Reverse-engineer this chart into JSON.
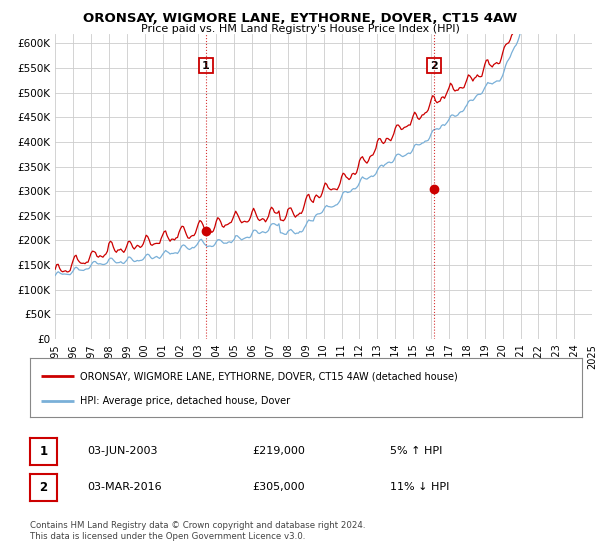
{
  "title": "ORONSAY, WIGMORE LANE, EYTHORNE, DOVER, CT15 4AW",
  "subtitle": "Price paid vs. HM Land Registry's House Price Index (HPI)",
  "ylabel_ticks": [
    "£0",
    "£50K",
    "£100K",
    "£150K",
    "£200K",
    "£250K",
    "£300K",
    "£350K",
    "£400K",
    "£450K",
    "£500K",
    "£550K",
    "£600K"
  ],
  "ytick_values": [
    0,
    50000,
    100000,
    150000,
    200000,
    250000,
    300000,
    350000,
    400000,
    450000,
    500000,
    550000,
    600000
  ],
  "ylim": [
    0,
    620000
  ],
  "x_start_year": 1995,
  "x_end_year": 2025,
  "hpi_color": "#7ab0d8",
  "price_color": "#cc0000",
  "sale1_date": 2003.42,
  "sale1_price": 219000,
  "sale2_date": 2016.17,
  "sale2_price": 305000,
  "legend_label1": "ORONSAY, WIGMORE LANE, EYTHORNE, DOVER, CT15 4AW (detached house)",
  "legend_label2": "HPI: Average price, detached house, Dover",
  "footer1": "Contains HM Land Registry data © Crown copyright and database right 2024.",
  "footer2": "This data is licensed under the Open Government Licence v3.0.",
  "background_color": "#ffffff",
  "plot_bg_color": "#ffffff",
  "grid_color": "#cccccc"
}
